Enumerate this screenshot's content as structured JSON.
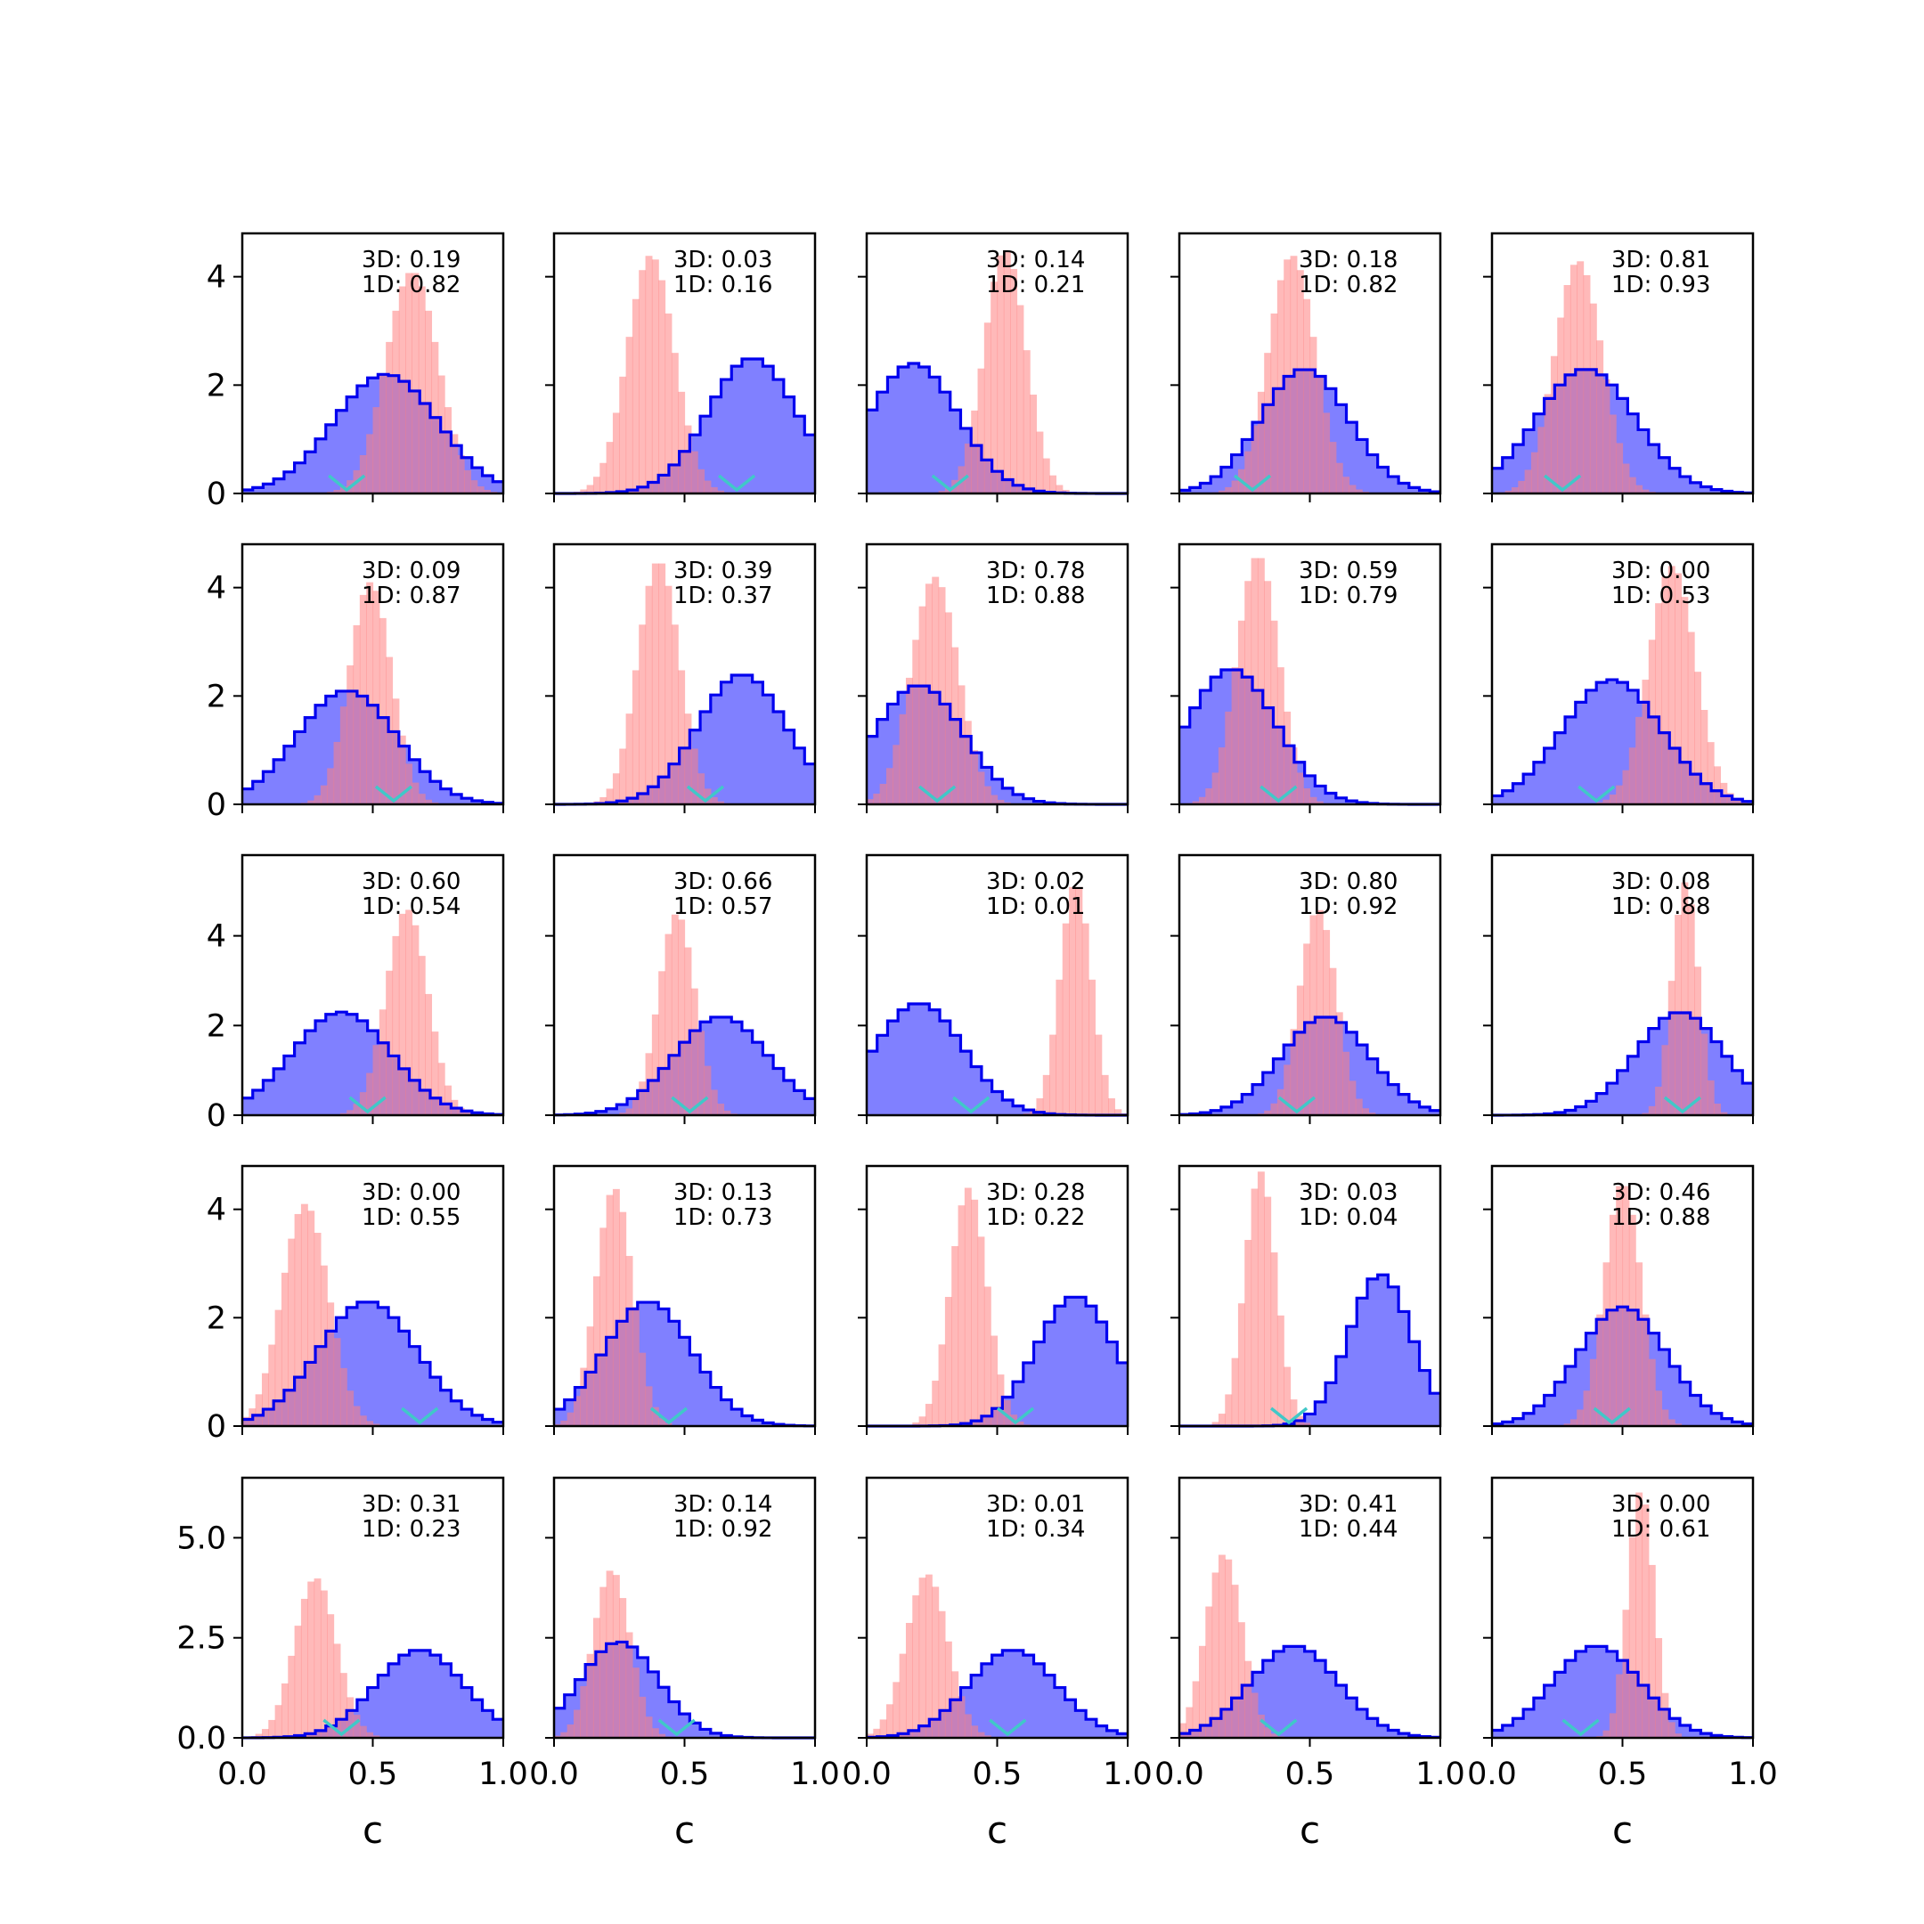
{
  "chart_data": {
    "type": "histogram-grid",
    "rows": 5,
    "cols": 5,
    "xlabel": "c",
    "xlim": [
      0,
      1
    ],
    "x_ticks": [
      "0.0",
      "0.5",
      "1.0"
    ],
    "ylim_rows": [
      [
        0,
        4.8
      ],
      [
        0,
        4.8
      ],
      [
        0,
        5.8
      ],
      [
        0,
        4.8
      ],
      [
        0,
        6.5
      ]
    ],
    "y_ticks_rows": [
      [
        "0",
        "2",
        "4"
      ],
      [
        "0",
        "2",
        "4"
      ],
      [
        "0",
        "2",
        "4"
      ],
      [
        "0",
        "2",
        "4"
      ],
      [
        "0.0",
        "2.5",
        "5.0"
      ]
    ],
    "colors": {
      "dist_3d": "#0000ee",
      "dist_3d_fill": "#8080ff",
      "dist_1d": "#ff7f7f",
      "marker": "#40c8c8"
    },
    "panels": [
      {
        "label_3d": "3D: 0.19",
        "label_1d": "1D: 0.82",
        "blue": {
          "mean": 0.55,
          "sd": 0.2,
          "peak": 2.2
        },
        "red": {
          "mean": 0.65,
          "sd": 0.1,
          "peak": 4.1
        },
        "marker": 0.4
      },
      {
        "label_3d": "3D: 0.03",
        "label_1d": "1D: 0.16",
        "blue": {
          "mean": 0.76,
          "sd": 0.17,
          "peak": 2.5
        },
        "red": {
          "mean": 0.37,
          "sd": 0.09,
          "peak": 4.4
        },
        "marker": 0.7
      },
      {
        "label_3d": "3D: 0.14",
        "label_1d": "1D: 0.21",
        "blue": {
          "mean": 0.18,
          "sd": 0.17,
          "peak": 2.4
        },
        "red": {
          "mean": 0.53,
          "sd": 0.08,
          "peak": 4.5
        },
        "marker": 0.32
      },
      {
        "label_3d": "3D: 0.18",
        "label_1d": "1D: 0.82",
        "blue": {
          "mean": 0.48,
          "sd": 0.17,
          "peak": 2.3
        },
        "red": {
          "mean": 0.43,
          "sd": 0.09,
          "peak": 4.4
        },
        "marker": 0.28
      },
      {
        "label_3d": "3D: 0.81",
        "label_1d": "1D: 0.93",
        "blue": {
          "mean": 0.36,
          "sd": 0.19,
          "peak": 2.3
        },
        "red": {
          "mean": 0.33,
          "sd": 0.09,
          "peak": 4.3
        },
        "marker": 0.27
      },
      {
        "label_3d": "3D: 0.09",
        "label_1d": "1D: 0.87",
        "blue": {
          "mean": 0.4,
          "sd": 0.19,
          "peak": 2.1
        },
        "red": {
          "mean": 0.49,
          "sd": 0.08,
          "peak": 4.1
        },
        "marker": 0.58
      },
      {
        "label_3d": "3D: 0.39",
        "label_1d": "1D: 0.37",
        "blue": {
          "mean": 0.72,
          "sd": 0.17,
          "peak": 2.4
        },
        "red": {
          "mean": 0.4,
          "sd": 0.08,
          "peak": 4.5
        },
        "marker": 0.58
      },
      {
        "label_3d": "3D: 0.78",
        "label_1d": "1D: 0.88",
        "blue": {
          "mean": 0.2,
          "sd": 0.17,
          "peak": 2.2
        },
        "red": {
          "mean": 0.26,
          "sd": 0.09,
          "peak": 4.2
        },
        "marker": 0.27
      },
      {
        "label_3d": "3D: 0.59",
        "label_1d": "1D: 0.79",
        "blue": {
          "mean": 0.2,
          "sd": 0.17,
          "peak": 2.5
        },
        "red": {
          "mean": 0.3,
          "sd": 0.08,
          "peak": 4.6
        },
        "marker": 0.38
      },
      {
        "label_3d": "3D: 0.00",
        "label_1d": "1D: 0.53",
        "blue": {
          "mean": 0.46,
          "sd": 0.19,
          "peak": 2.3
        },
        "red": {
          "mean": 0.69,
          "sd": 0.09,
          "peak": 4.4
        },
        "marker": 0.4
      },
      {
        "label_3d": "3D: 0.60",
        "label_1d": "1D: 0.54",
        "blue": {
          "mean": 0.38,
          "sd": 0.19,
          "peak": 2.3
        },
        "red": {
          "mean": 0.63,
          "sd": 0.08,
          "peak": 4.6
        },
        "marker": 0.48
      },
      {
        "label_3d": "3D: 0.66",
        "label_1d": "1D: 0.57",
        "blue": {
          "mean": 0.64,
          "sd": 0.18,
          "peak": 2.2
        },
        "red": {
          "mean": 0.47,
          "sd": 0.07,
          "peak": 4.5
        },
        "marker": 0.52
      },
      {
        "label_3d": "3D: 0.02",
        "label_1d": "1D: 0.01",
        "blue": {
          "mean": 0.2,
          "sd": 0.17,
          "peak": 2.5
        },
        "red": {
          "mean": 0.8,
          "sd": 0.06,
          "peak": 5.2
        },
        "marker": 0.4
      },
      {
        "label_3d": "3D: 0.80",
        "label_1d": "1D: 0.92",
        "blue": {
          "mean": 0.56,
          "sd": 0.17,
          "peak": 2.2
        },
        "red": {
          "mean": 0.53,
          "sd": 0.07,
          "peak": 4.6
        },
        "marker": 0.45
      },
      {
        "label_3d": "3D: 0.08",
        "label_1d": "1D: 0.88",
        "blue": {
          "mean": 0.72,
          "sd": 0.17,
          "peak": 2.3
        },
        "red": {
          "mean": 0.74,
          "sd": 0.05,
          "peak": 5.2
        },
        "marker": 0.73
      },
      {
        "label_3d": "3D: 0.00",
        "label_1d": "1D: 0.55",
        "blue": {
          "mean": 0.48,
          "sd": 0.19,
          "peak": 2.3
        },
        "red": {
          "mean": 0.24,
          "sd": 0.09,
          "peak": 4.1
        },
        "marker": 0.68
      },
      {
        "label_3d": "3D: 0.13",
        "label_1d": "1D: 0.73",
        "blue": {
          "mean": 0.36,
          "sd": 0.17,
          "peak": 2.3
        },
        "red": {
          "mean": 0.23,
          "sd": 0.07,
          "peak": 4.4
        },
        "marker": 0.44
      },
      {
        "label_3d": "3D: 0.28",
        "label_1d": "1D: 0.22",
        "blue": {
          "mean": 0.8,
          "sd": 0.15,
          "peak": 2.4
        },
        "red": {
          "mean": 0.39,
          "sd": 0.07,
          "peak": 4.4
        },
        "marker": 0.57
      },
      {
        "label_3d": "3D: 0.03",
        "label_1d": "1D: 0.04",
        "blue": {
          "mean": 0.77,
          "sd": 0.12,
          "peak": 2.8
        },
        "red": {
          "mean": 0.31,
          "sd": 0.06,
          "peak": 4.7
        },
        "marker": 0.42
      },
      {
        "label_3d": "3D: 0.46",
        "label_1d": "1D: 0.88",
        "blue": {
          "mean": 0.5,
          "sd": 0.17,
          "peak": 2.2
        },
        "red": {
          "mean": 0.5,
          "sd": 0.07,
          "peak": 4.5
        },
        "marker": 0.46
      },
      {
        "label_3d": "3D: 0.31",
        "label_1d": "1D: 0.23",
        "blue": {
          "mean": 0.68,
          "sd": 0.17,
          "peak": 2.2
        },
        "red": {
          "mean": 0.28,
          "sd": 0.08,
          "peak": 4.0
        },
        "marker": 0.38
      },
      {
        "label_3d": "3D: 0.14",
        "label_1d": "1D: 0.92",
        "blue": {
          "mean": 0.25,
          "sd": 0.15,
          "peak": 2.4
        },
        "red": {
          "mean": 0.22,
          "sd": 0.07,
          "peak": 4.2
        },
        "marker": 0.47
      },
      {
        "label_3d": "3D: 0.01",
        "label_1d": "1D: 0.34",
        "blue": {
          "mean": 0.56,
          "sd": 0.17,
          "peak": 2.2
        },
        "red": {
          "mean": 0.23,
          "sd": 0.08,
          "peak": 4.1
        },
        "marker": 0.54
      },
      {
        "label_3d": "3D: 0.41",
        "label_1d": "1D: 0.44",
        "blue": {
          "mean": 0.44,
          "sd": 0.17,
          "peak": 2.3
        },
        "red": {
          "mean": 0.17,
          "sd": 0.07,
          "peak": 4.6
        },
        "marker": 0.38
      },
      {
        "label_3d": "3D: 0.00",
        "label_1d": "1D: 0.61",
        "blue": {
          "mean": 0.4,
          "sd": 0.17,
          "peak": 2.3
        },
        "red": {
          "mean": 0.57,
          "sd": 0.05,
          "peak": 6.2
        },
        "marker": 0.34
      }
    ]
  }
}
